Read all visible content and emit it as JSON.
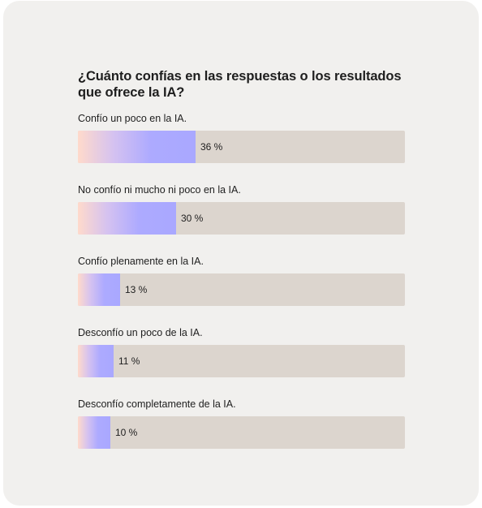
{
  "chart_data": {
    "type": "bar",
    "orientation": "horizontal",
    "title": "¿Cuánto confías en las respuestas o los resultados que ofrece la IA?",
    "categories": [
      "Confío un poco en la IA.",
      "No confío ni mucho ni poco en la IA.",
      "Confío plenamente en la IA.",
      "Desconfío un poco de la IA.",
      "Desconfío completamente de la IA."
    ],
    "values": [
      36,
      30,
      13,
      11,
      10
    ],
    "value_labels": [
      "36 %",
      "30 %",
      "13 %",
      "11 %",
      "10 %"
    ],
    "unit": "%",
    "xlim": [
      0,
      100
    ],
    "grid": false,
    "legend": "none",
    "colors": {
      "track": "#dcd5ce",
      "fill_start": "#ffdacb",
      "fill_end": "#a9a8ff",
      "text": "#1e1e1e",
      "background": "#f1f0ee"
    }
  }
}
